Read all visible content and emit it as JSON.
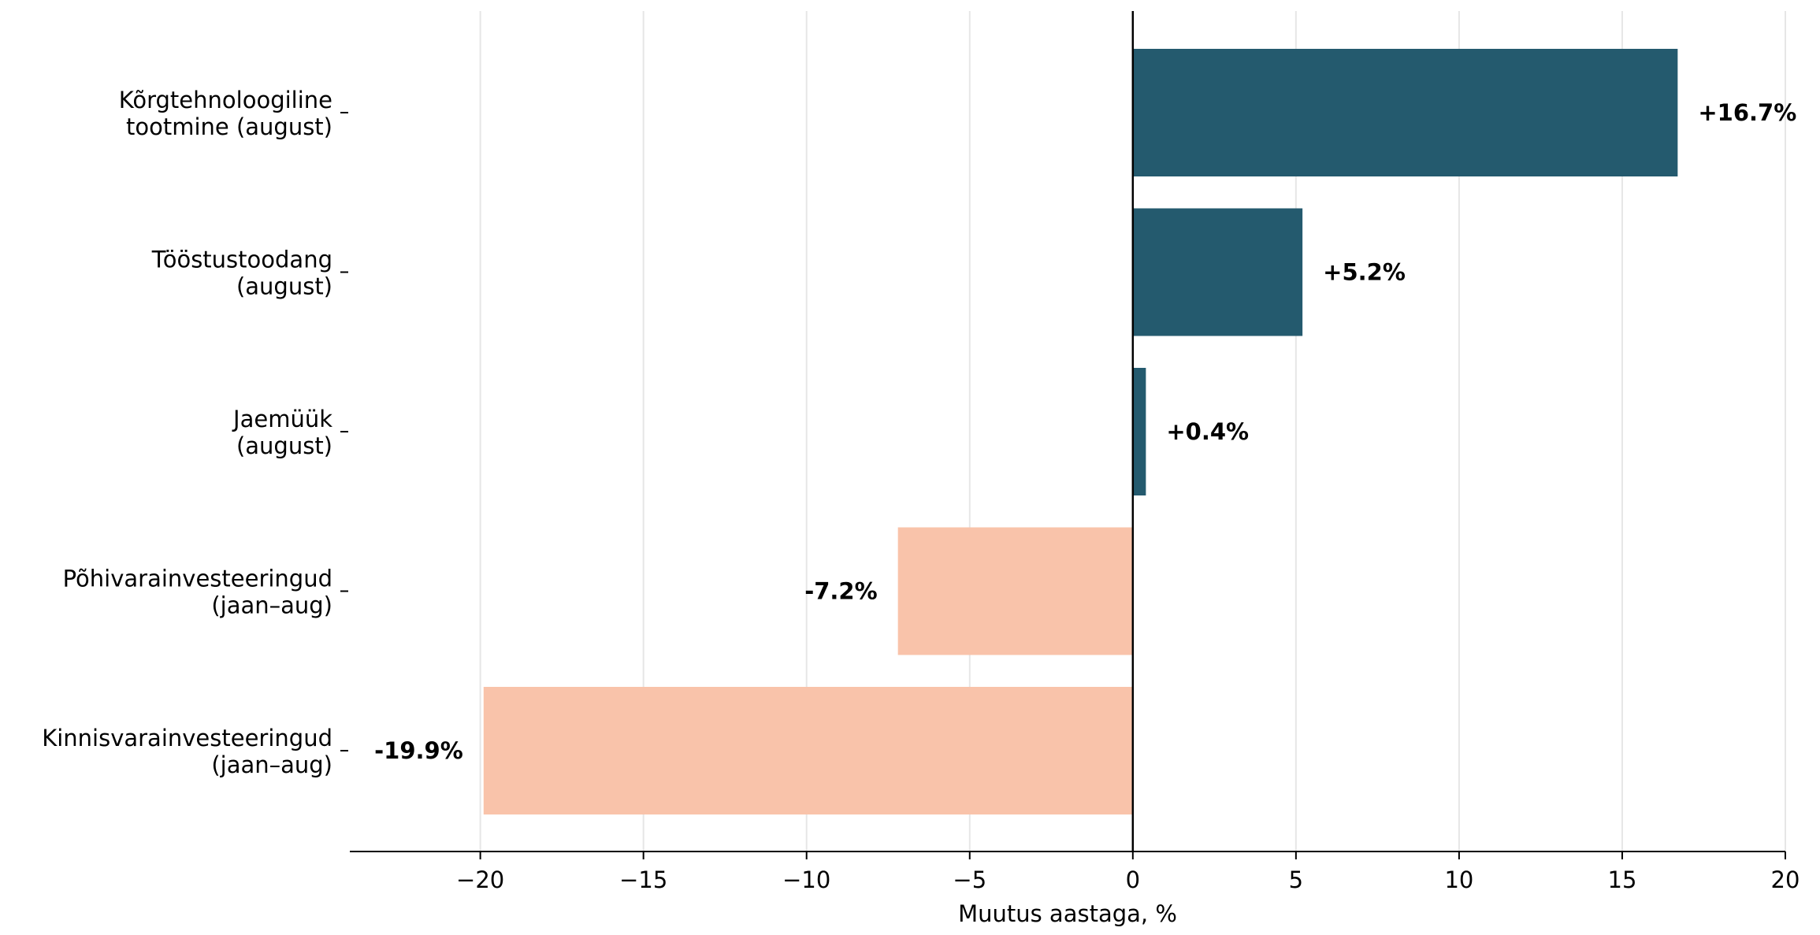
{
  "chart_data": {
    "type": "bar",
    "orientation": "horizontal",
    "categories": [
      "Kõrgtehnoloogiline\ntootmine (august)",
      "Tööstustoodang\n(august)",
      "Jaemüük\n(august)",
      "Põhivarainvesteeringud\n(jaan–aug)",
      "Kinnisvarainvesteeringud\n(jaan–aug)"
    ],
    "values": [
      16.7,
      5.2,
      0.4,
      -7.2,
      -19.9
    ],
    "data_labels": [
      "+16.7%",
      "+5.2%",
      "+0.4%",
      "-7.2%",
      "-19.9%"
    ],
    "xlabel": "Muutus aastaga, %",
    "ylabel": "",
    "xlim": [
      -24,
      20
    ],
    "xticks": [
      -20,
      -15,
      -10,
      -5,
      0,
      5,
      10,
      15,
      20
    ],
    "xtick_labels": [
      "−20",
      "−15",
      "−10",
      "−5",
      "0",
      "5",
      "10",
      "15",
      "20"
    ],
    "grid": "vertical",
    "colors": {
      "positive": "#245a6e",
      "negative": "#f9c3aa",
      "grid": "#e6e6e6",
      "axis": "#000000"
    }
  }
}
